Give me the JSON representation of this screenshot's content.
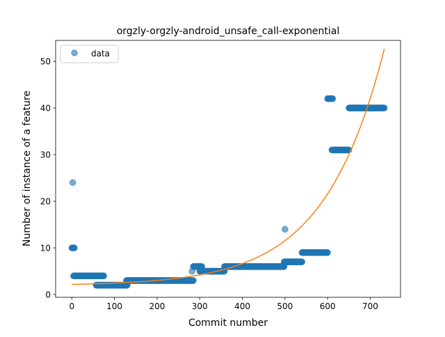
{
  "chart_data": {
    "type": "scatter",
    "title": "orgzly-orgzly-android_unsafe_call-exponential",
    "xlabel": "Commit number",
    "ylabel": "Number of instance of a feature",
    "xlim": [
      -38,
      771
    ],
    "ylim": [
      -0.6,
      54.5
    ],
    "xticks": [
      0,
      100,
      200,
      300,
      400,
      500,
      600,
      700
    ],
    "yticks": [
      0,
      10,
      20,
      30,
      40,
      50
    ],
    "grid": false,
    "legend": {
      "position": "upper left",
      "entries": [
        "data"
      ]
    },
    "colors": {
      "data": "#1f77b4",
      "fit": "#ff7f0e"
    },
    "series": [
      {
        "name": "data",
        "style": "markers",
        "segments": [
          {
            "x_start": 0,
            "x_end": 6,
            "y": 10
          },
          {
            "x_start": 4,
            "x_end": 75,
            "y": 4
          },
          {
            "x_start": 57,
            "x_end": 130,
            "y": 2
          },
          {
            "x_start": 128,
            "x_end": 285,
            "y": 3
          },
          {
            "x_start": 285,
            "x_end": 305,
            "y": 6
          },
          {
            "x_start": 300,
            "x_end": 358,
            "y": 5
          },
          {
            "x_start": 358,
            "x_end": 498,
            "y": 6
          },
          {
            "x_start": 498,
            "x_end": 540,
            "y": 7
          },
          {
            "x_start": 540,
            "x_end": 600,
            "y": 9
          },
          {
            "x_start": 600,
            "x_end": 612,
            "y": 42
          },
          {
            "x_start": 610,
            "x_end": 650,
            "y": 31
          },
          {
            "x_start": 650,
            "x_end": 733,
            "y": 40
          }
        ],
        "points": [
          {
            "x": 2,
            "y": 24
          },
          {
            "x": 282,
            "y": 5
          },
          {
            "x": 500,
            "y": 14
          }
        ]
      },
      {
        "name": "fit",
        "style": "line",
        "model": "y = a*exp(b*x)+c",
        "params": {
          "a": 0.275,
          "b": 0.00712,
          "c": 1.89
        },
        "x_range": [
          0,
          733
        ]
      }
    ]
  }
}
